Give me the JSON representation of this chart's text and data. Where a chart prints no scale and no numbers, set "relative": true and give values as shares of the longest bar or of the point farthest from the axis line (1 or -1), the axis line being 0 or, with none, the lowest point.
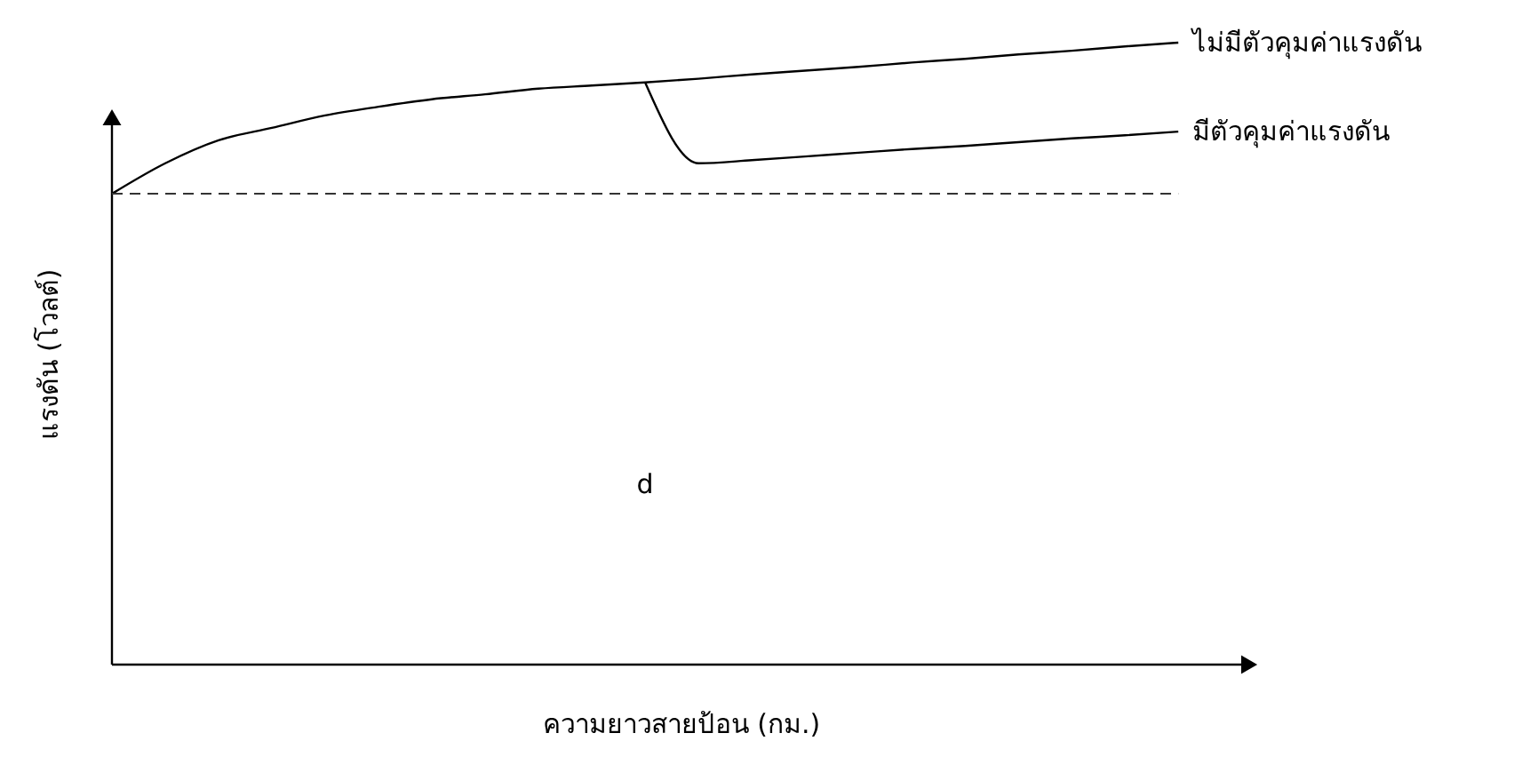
{
  "chart_data": {
    "type": "line",
    "relative": true,
    "xlabel": "ความยาวสายป้อน (กม.)",
    "ylabel": "แรงดัน (โวลต์)",
    "categories": [
      null,
      null,
      null,
      null,
      null,
      null,
      null,
      null,
      null,
      null,
      null,
      null,
      null,
      null,
      null,
      null,
      null,
      null,
      null,
      null,
      null
    ],
    "series": [
      {
        "name": "ไม่มีตัวคุมค่าแรงดัน",
        "color": "#000000",
        "values": [
          0.757,
          0.806,
          0.843,
          0.863,
          0.883,
          0.897,
          0.909,
          0.917,
          0.926,
          0.931,
          0.936,
          0.942,
          0.949,
          0.955,
          0.961,
          0.968,
          0.974,
          0.981,
          0.987,
          0.994,
          1
        ]
      },
      {
        "name": "มีตัวคุมค่าแรงดัน",
        "color": "#000000",
        "values": [
          null,
          null,
          null,
          null,
          null,
          null,
          null,
          null,
          null,
          null,
          0.936,
          0.806,
          0.811,
          0.817,
          0.823,
          0.829,
          0.834,
          0.84,
          0.846,
          0.851,
          0.857
        ]
      }
    ],
    "ref_lines": [
      {
        "axis": "y",
        "value": 0.757,
        "color": "#333333",
        "line_style": "dashed"
      }
    ],
    "annotations": [
      "d"
    ],
    "legend": false,
    "grid": false,
    "marker": "none",
    "line_style": "solid"
  }
}
